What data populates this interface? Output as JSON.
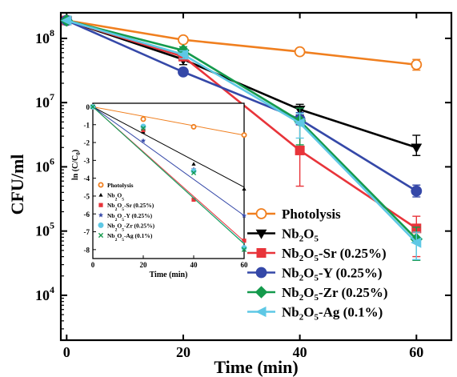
{
  "chart_data": [
    {
      "type": "line",
      "xlabel": "Time (min)",
      "ylabel": "CFU/ml",
      "yscale": "log",
      "xlim": [
        -1,
        66
      ],
      "ylim": [
        2000,
        250000000
      ],
      "x_ticks": [
        0,
        20,
        40,
        60
      ],
      "y_ticks": [
        {
          "value": 10000,
          "base": "10",
          "exp": "4"
        },
        {
          "value": 100000,
          "base": "10",
          "exp": "5"
        },
        {
          "value": 1000000,
          "base": "10",
          "exp": "6"
        },
        {
          "value": 10000000,
          "base": "10",
          "exp": "7"
        },
        {
          "value": 100000000,
          "base": "10",
          "exp": "8"
        }
      ],
      "legend_position": "lower-right",
      "series": [
        {
          "name": "Photolysis",
          "sub": "",
          "suffix": "",
          "color": "#f07f1f",
          "marker": "circle-open",
          "x": [
            0,
            20,
            40,
            60
          ],
          "y": [
            190000000,
            95000000,
            62000000,
            39000000
          ],
          "err_lo": [
            0,
            6000000,
            6000000,
            7000000
          ],
          "err_hi": [
            0,
            7000000,
            7000000,
            8000000
          ]
        },
        {
          "name": "Nb",
          "sub": "2",
          "suffix": "O",
          "suffix_sub": "5",
          "tail": "",
          "color": "#000000",
          "marker": "triangle-down",
          "x": [
            0,
            20,
            40,
            60
          ],
          "y": [
            190000000,
            47000000,
            7800000,
            2000000
          ],
          "err_lo": [
            0,
            8000000,
            1400000,
            500000
          ],
          "err_hi": [
            0,
            10000000,
            1600000,
            1100000
          ]
        },
        {
          "name": "Nb",
          "sub": "2",
          "suffix": "O",
          "suffix_sub": "5",
          "tail": "-Sr (0.25%)",
          "color": "#e8343a",
          "marker": "square",
          "x": [
            0,
            20,
            40,
            60
          ],
          "y": [
            190000000,
            52000000,
            1800000,
            110000
          ],
          "err_lo": [
            0,
            6000000,
            1300000,
            70000
          ],
          "err_hi": [
            0,
            7000000,
            2800000,
            60000
          ]
        },
        {
          "name": "Nb",
          "sub": "2",
          "suffix": "O",
          "suffix_sub": "5",
          "tail": "-Y (0.25%)",
          "color": "#3548a8",
          "marker": "circle",
          "x": [
            0,
            20,
            40,
            60
          ],
          "y": [
            190000000,
            30000000,
            5500000,
            420000
          ],
          "err_lo": [
            0,
            3000000,
            1000000,
            80000
          ],
          "err_hi": [
            0,
            3000000,
            1500000,
            100000
          ]
        },
        {
          "name": "Nb",
          "sub": "2",
          "suffix": "O",
          "suffix_sub": "5",
          "tail": "-Zr (0.25%)",
          "color": "#149a4c",
          "marker": "diamond",
          "x": [
            0,
            20,
            40,
            60
          ],
          "y": [
            190000000,
            65000000,
            5200000,
            75000
          ],
          "err_lo": [
            0,
            9000000,
            3000000,
            40000
          ],
          "err_hi": [
            0,
            9000000,
            3000000,
            40000
          ]
        },
        {
          "name": "Nb",
          "sub": "2",
          "suffix": "O",
          "suffix_sub": "5",
          "tail": "-Ag (0.1%)",
          "color": "#5ec8e5",
          "marker": "triangle-left",
          "x": [
            0,
            20,
            40,
            60
          ],
          "y": [
            190000000,
            56000000,
            4800000,
            66000
          ],
          "err_lo": [
            0,
            8000000,
            2000000,
            30000
          ],
          "err_hi": [
            0,
            8000000,
            2000000,
            30000
          ]
        }
      ]
    },
    {
      "type": "scatter",
      "xlabel": "Time (min)",
      "ylabel_main": "ln (C/C",
      "ylabel_sub": "0",
      "ylabel_close": ")",
      "xlim": [
        0,
        60
      ],
      "ylim": [
        -8.5,
        0.2
      ],
      "x_ticks": [
        0,
        20,
        40,
        60
      ],
      "y_ticks": [
        0,
        -1,
        -2,
        -3,
        -4,
        -5,
        -6,
        -7,
        -8
      ],
      "legend_position": "top-left",
      "series": [
        {
          "name": "Photolysis",
          "sub": "",
          "tail": "",
          "color": "#f07f1f",
          "marker": "circle-open",
          "x": [
            0,
            20,
            40,
            60
          ],
          "y": [
            0,
            -0.69,
            -1.12,
            -1.58
          ],
          "fit_slope": -0.0265
        },
        {
          "name": "Nb",
          "sub": "2",
          "suffix": "O",
          "suffix_sub": "5",
          "tail": "",
          "color": "#000000",
          "marker": "triangle-up",
          "x": [
            0,
            20,
            40,
            60
          ],
          "y": [
            0,
            -1.4,
            -3.2,
            -4.6
          ],
          "fit_slope": -0.075
        },
        {
          "name": "Nb",
          "sub": "2",
          "suffix": "O",
          "suffix_sub": "5",
          "tail": "-Sr (0.25%)",
          "color": "#e8343a",
          "marker": "square",
          "x": [
            0,
            20,
            40,
            60
          ],
          "y": [
            0,
            -1.3,
            -5.2,
            -7.5
          ],
          "fit_slope": -0.1255
        },
        {
          "name": "Nb",
          "sub": "2",
          "suffix": "O",
          "suffix_sub": "5",
          "tail": "-Y (0.25%)",
          "color": "#3548a8",
          "marker": "star",
          "x": [
            0,
            20,
            40,
            60
          ],
          "y": [
            0,
            -1.9,
            -3.5,
            -6.1
          ],
          "fit_slope": -0.1015
        },
        {
          "name": "Nb",
          "sub": "2",
          "suffix": "O",
          "suffix_sub": "5",
          "tail": "-Zr (0.25%)",
          "color": "#5ec8e5",
          "marker": "circle",
          "x": [
            0,
            20,
            40,
            60
          ],
          "y": [
            0,
            -1.1,
            -3.6,
            -7.9
          ],
          "fit_slope": -0.1275
        },
        {
          "name": "Nb",
          "sub": "2",
          "suffix": "O",
          "suffix_sub": "5",
          "tail": "-Ag (0.1%)",
          "color": "#149a4c",
          "marker": "cross",
          "x": [
            0,
            20,
            40,
            60
          ],
          "y": [
            0,
            -1.2,
            -3.7,
            -8.0
          ],
          "fit_slope": -0.128
        }
      ]
    }
  ]
}
